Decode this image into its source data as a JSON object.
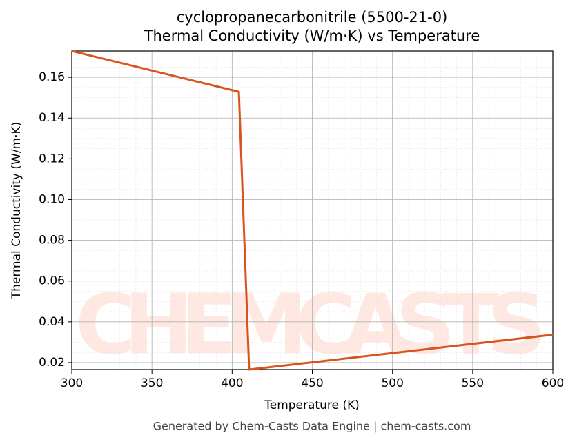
{
  "chart_data": {
    "type": "line",
    "title": "cyclopropanecarbonitrile (5500-21-0)",
    "subtitle": "Thermal Conductivity (W/m·K) vs Temperature",
    "x_label": "Temperature (K)",
    "y_label": "Thermal Conductivity (W/m·K)",
    "footer": "Generated by Chem-Casts Data Engine | chem-casts.com",
    "watermark": "CHEMCASTS",
    "x": [
      300,
      404.2,
      410.6,
      600
    ],
    "series": [
      {
        "color": "#d9531e",
        "values": [
          0.1729,
          0.1529,
          0.0166,
          0.0337
        ]
      }
    ],
    "xlim": [
      300,
      600
    ],
    "ylim": [
      0.0166,
      0.1729
    ],
    "xticks": [
      300,
      350,
      400,
      450,
      500,
      550,
      600
    ],
    "yticks": [
      0.02,
      0.04,
      0.06,
      0.08,
      {
        "value": 0.1,
        "label": "0.10"
      },
      0.12,
      0.14,
      0.16
    ],
    "grid": true
  }
}
